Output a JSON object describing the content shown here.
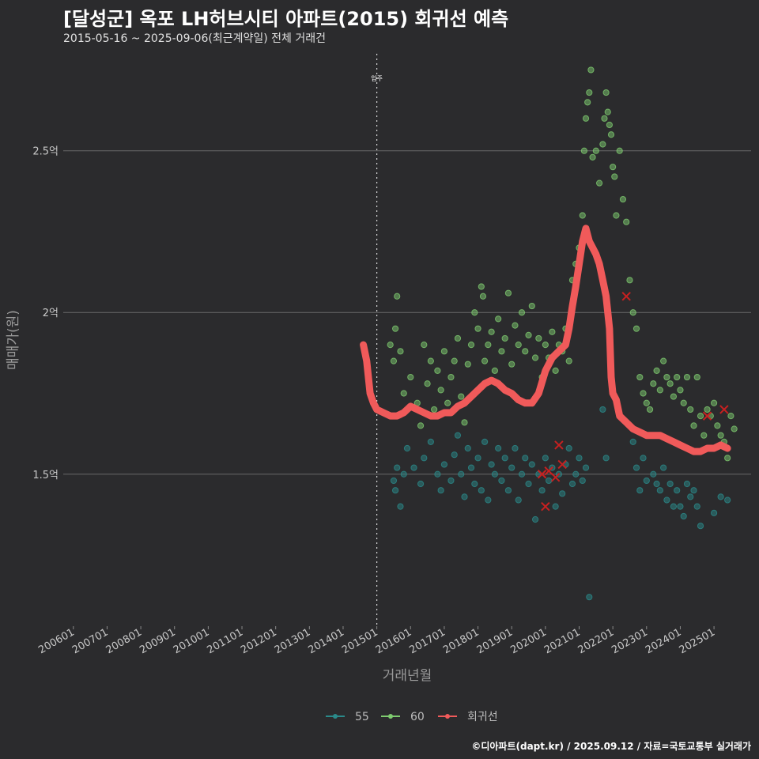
{
  "header": {
    "title": "[달성군] 옥포 LH허브시티 아파트(2015) 회귀선 예측",
    "subtitle": "2015-05-16 ~ 2025-09-06(최근계약일) 전체 거래건"
  },
  "footer": {
    "credit": "©디아파트(dapt.kr) / 2025.09.12 / 자료=국토교통부 실거래가"
  },
  "chart_data": {
    "type": "scatter",
    "title": "[달성군] 옥포 LH허브시티 아파트(2015) 회귀선 예측",
    "xlabel": "거래년월",
    "ylabel": "매매가(원)",
    "xlim": [
      2005.7,
      2026.1
    ],
    "ylim": [
      1.03,
      2.8
    ],
    "x_ticks": [
      2006,
      2007,
      2008,
      2009,
      2010,
      2011,
      2012,
      2013,
      2014,
      2015,
      2016,
      2017,
      2018,
      2019,
      2020,
      2021,
      2022,
      2023,
      2024,
      2025
    ],
    "x_tick_labels": [
      "200601",
      "200701",
      "200801",
      "200901",
      "201001",
      "201101",
      "201201",
      "201301",
      "201401",
      "201501",
      "201601",
      "201701",
      "201801",
      "201901",
      "202001",
      "202101",
      "202201",
      "202301",
      "202401",
      "202501"
    ],
    "y_ticks": [
      1.5,
      2.0,
      2.5
    ],
    "y_tick_labels": [
      "1.5억",
      "2억",
      "2.5억"
    ],
    "annotation": {
      "x": 2015.0,
      "label": "입주"
    },
    "legend": {
      "position": "bottom",
      "items": [
        {
          "label": "55",
          "color": "#2a8a8a"
        },
        {
          "label": "60",
          "color": "#7ecb6f"
        },
        {
          "label": "회귀선",
          "color": "#f05a5a"
        }
      ]
    },
    "series": [
      {
        "name": "55",
        "color": "#2a8a8a",
        "points": [
          [
            2015.5,
            1.48
          ],
          [
            2015.55,
            1.45
          ],
          [
            2015.6,
            1.52
          ],
          [
            2015.7,
            1.4
          ],
          [
            2015.8,
            1.5
          ],
          [
            2015.9,
            1.58
          ],
          [
            2016.1,
            1.52
          ],
          [
            2016.3,
            1.47
          ],
          [
            2016.4,
            1.55
          ],
          [
            2016.6,
            1.6
          ],
          [
            2016.8,
            1.5
          ],
          [
            2016.9,
            1.45
          ],
          [
            2017.0,
            1.53
          ],
          [
            2017.2,
            1.48
          ],
          [
            2017.3,
            1.56
          ],
          [
            2017.4,
            1.62
          ],
          [
            2017.5,
            1.5
          ],
          [
            2017.6,
            1.43
          ],
          [
            2017.7,
            1.58
          ],
          [
            2017.8,
            1.52
          ],
          [
            2017.9,
            1.47
          ],
          [
            2018.0,
            1.55
          ],
          [
            2018.1,
            1.45
          ],
          [
            2018.2,
            1.6
          ],
          [
            2018.3,
            1.42
          ],
          [
            2018.4,
            1.53
          ],
          [
            2018.5,
            1.5
          ],
          [
            2018.6,
            1.58
          ],
          [
            2018.7,
            1.48
          ],
          [
            2018.8,
            1.55
          ],
          [
            2018.9,
            1.45
          ],
          [
            2019.0,
            1.52
          ],
          [
            2019.1,
            1.58
          ],
          [
            2019.2,
            1.42
          ],
          [
            2019.3,
            1.5
          ],
          [
            2019.4,
            1.55
          ],
          [
            2019.5,
            1.47
          ],
          [
            2019.6,
            1.53
          ],
          [
            2019.7,
            1.36
          ],
          [
            2019.8,
            1.5
          ],
          [
            2019.9,
            1.45
          ],
          [
            2020.0,
            1.55
          ],
          [
            2020.1,
            1.48
          ],
          [
            2020.2,
            1.52
          ],
          [
            2020.3,
            1.4
          ],
          [
            2020.4,
            1.5
          ],
          [
            2020.5,
            1.44
          ],
          [
            2020.6,
            1.53
          ],
          [
            2020.7,
            1.58
          ],
          [
            2020.8,
            1.47
          ],
          [
            2020.9,
            1.5
          ],
          [
            2021.0,
            1.55
          ],
          [
            2021.1,
            1.48
          ],
          [
            2021.2,
            1.52
          ],
          [
            2021.3,
            1.12
          ],
          [
            2021.7,
            1.7
          ],
          [
            2021.8,
            1.55
          ],
          [
            2022.6,
            1.6
          ],
          [
            2022.7,
            1.52
          ],
          [
            2022.8,
            1.45
          ],
          [
            2022.9,
            1.55
          ],
          [
            2023.0,
            1.48
          ],
          [
            2023.2,
            1.5
          ],
          [
            2023.3,
            1.47
          ],
          [
            2023.4,
            1.45
          ],
          [
            2023.5,
            1.52
          ],
          [
            2023.6,
            1.42
          ],
          [
            2023.7,
            1.47
          ],
          [
            2023.8,
            1.4
          ],
          [
            2023.9,
            1.45
          ],
          [
            2024.0,
            1.4
          ],
          [
            2024.1,
            1.37
          ],
          [
            2024.2,
            1.47
          ],
          [
            2024.3,
            1.43
          ],
          [
            2024.4,
            1.45
          ],
          [
            2024.5,
            1.4
          ],
          [
            2024.6,
            1.34
          ],
          [
            2025.0,
            1.38
          ],
          [
            2025.2,
            1.43
          ],
          [
            2025.4,
            1.42
          ]
        ]
      },
      {
        "name": "60",
        "color": "#7ecb6f",
        "points": [
          [
            2015.4,
            1.9
          ],
          [
            2015.5,
            1.85
          ],
          [
            2015.55,
            1.95
          ],
          [
            2015.6,
            2.05
          ],
          [
            2015.7,
            1.88
          ],
          [
            2015.8,
            1.75
          ],
          [
            2016.0,
            1.8
          ],
          [
            2016.2,
            1.72
          ],
          [
            2016.3,
            1.65
          ],
          [
            2016.4,
            1.9
          ],
          [
            2016.5,
            1.78
          ],
          [
            2016.6,
            1.85
          ],
          [
            2016.7,
            1.7
          ],
          [
            2016.8,
            1.82
          ],
          [
            2016.9,
            1.76
          ],
          [
            2017.0,
            1.88
          ],
          [
            2017.1,
            1.72
          ],
          [
            2017.2,
            1.8
          ],
          [
            2017.3,
            1.85
          ],
          [
            2017.4,
            1.92
          ],
          [
            2017.5,
            1.74
          ],
          [
            2017.6,
            1.66
          ],
          [
            2017.7,
            1.84
          ],
          [
            2017.8,
            1.9
          ],
          [
            2017.9,
            2.0
          ],
          [
            2018.0,
            1.95
          ],
          [
            2018.1,
            2.08
          ],
          [
            2018.15,
            2.05
          ],
          [
            2018.2,
            1.85
          ],
          [
            2018.3,
            1.9
          ],
          [
            2018.4,
            1.94
          ],
          [
            2018.5,
            1.82
          ],
          [
            2018.6,
            1.98
          ],
          [
            2018.7,
            1.88
          ],
          [
            2018.8,
            1.92
          ],
          [
            2018.9,
            2.06
          ],
          [
            2019.0,
            1.84
          ],
          [
            2019.1,
            1.96
          ],
          [
            2019.2,
            1.9
          ],
          [
            2019.3,
            2.0
          ],
          [
            2019.4,
            1.88
          ],
          [
            2019.5,
            1.93
          ],
          [
            2019.6,
            2.02
          ],
          [
            2019.7,
            1.86
          ],
          [
            2019.8,
            1.92
          ],
          [
            2019.9,
            1.8
          ],
          [
            2020.0,
            1.9
          ],
          [
            2020.1,
            1.86
          ],
          [
            2020.2,
            1.94
          ],
          [
            2020.3,
            1.82
          ],
          [
            2020.4,
            1.9
          ],
          [
            2020.5,
            1.88
          ],
          [
            2020.6,
            1.95
          ],
          [
            2020.7,
            1.85
          ],
          [
            2020.8,
            2.1
          ],
          [
            2020.9,
            2.15
          ],
          [
            2021.0,
            2.2
          ],
          [
            2021.1,
            2.3
          ],
          [
            2021.15,
            2.5
          ],
          [
            2021.2,
            2.6
          ],
          [
            2021.25,
            2.65
          ],
          [
            2021.3,
            2.68
          ],
          [
            2021.35,
            2.75
          ],
          [
            2021.4,
            2.48
          ],
          [
            2021.5,
            2.5
          ],
          [
            2021.6,
            2.4
          ],
          [
            2021.7,
            2.52
          ],
          [
            2021.75,
            2.6
          ],
          [
            2021.8,
            2.68
          ],
          [
            2021.85,
            2.62
          ],
          [
            2021.9,
            2.58
          ],
          [
            2021.95,
            2.55
          ],
          [
            2022.0,
            2.45
          ],
          [
            2022.05,
            2.42
          ],
          [
            2022.1,
            2.3
          ],
          [
            2022.2,
            2.5
          ],
          [
            2022.3,
            2.35
          ],
          [
            2022.4,
            2.28
          ],
          [
            2022.5,
            2.1
          ],
          [
            2022.6,
            2.0
          ],
          [
            2022.7,
            1.95
          ],
          [
            2022.8,
            1.8
          ],
          [
            2022.9,
            1.75
          ],
          [
            2023.0,
            1.72
          ],
          [
            2023.1,
            1.7
          ],
          [
            2023.2,
            1.78
          ],
          [
            2023.3,
            1.82
          ],
          [
            2023.4,
            1.76
          ],
          [
            2023.5,
            1.85
          ],
          [
            2023.6,
            1.8
          ],
          [
            2023.7,
            1.78
          ],
          [
            2023.8,
            1.74
          ],
          [
            2023.9,
            1.8
          ],
          [
            2024.0,
            1.76
          ],
          [
            2024.1,
            1.72
          ],
          [
            2024.2,
            1.8
          ],
          [
            2024.3,
            1.7
          ],
          [
            2024.4,
            1.65
          ],
          [
            2024.5,
            1.8
          ],
          [
            2024.6,
            1.68
          ],
          [
            2024.7,
            1.62
          ],
          [
            2024.8,
            1.7
          ],
          [
            2024.9,
            1.68
          ],
          [
            2025.0,
            1.72
          ],
          [
            2025.1,
            1.65
          ],
          [
            2025.2,
            1.62
          ],
          [
            2025.3,
            1.6
          ],
          [
            2025.4,
            1.55
          ],
          [
            2025.5,
            1.68
          ],
          [
            2025.6,
            1.64
          ]
        ]
      }
    ],
    "regression_line": {
      "name": "회귀선",
      "color": "#f05a5a",
      "points": [
        [
          2014.6,
          1.9
        ],
        [
          2014.7,
          1.85
        ],
        [
          2014.8,
          1.75
        ],
        [
          2014.9,
          1.72
        ],
        [
          2015.0,
          1.7
        ],
        [
          2015.2,
          1.69
        ],
        [
          2015.4,
          1.68
        ],
        [
          2015.6,
          1.68
        ],
        [
          2015.8,
          1.69
        ],
        [
          2016.0,
          1.71
        ],
        [
          2016.2,
          1.7
        ],
        [
          2016.4,
          1.69
        ],
        [
          2016.6,
          1.68
        ],
        [
          2016.8,
          1.68
        ],
        [
          2017.0,
          1.69
        ],
        [
          2017.2,
          1.69
        ],
        [
          2017.4,
          1.71
        ],
        [
          2017.6,
          1.72
        ],
        [
          2017.8,
          1.74
        ],
        [
          2018.0,
          1.76
        ],
        [
          2018.2,
          1.78
        ],
        [
          2018.4,
          1.79
        ],
        [
          2018.6,
          1.78
        ],
        [
          2018.8,
          1.76
        ],
        [
          2019.0,
          1.75
        ],
        [
          2019.2,
          1.73
        ],
        [
          2019.4,
          1.72
        ],
        [
          2019.6,
          1.72
        ],
        [
          2019.8,
          1.75
        ],
        [
          2020.0,
          1.82
        ],
        [
          2020.2,
          1.86
        ],
        [
          2020.4,
          1.88
        ],
        [
          2020.6,
          1.9
        ],
        [
          2020.7,
          1.95
        ],
        [
          2020.8,
          2.02
        ],
        [
          2020.9,
          2.08
        ],
        [
          2021.0,
          2.15
        ],
        [
          2021.1,
          2.22
        ],
        [
          2021.2,
          2.26
        ],
        [
          2021.3,
          2.22
        ],
        [
          2021.4,
          2.2
        ],
        [
          2021.5,
          2.18
        ],
        [
          2021.6,
          2.15
        ],
        [
          2021.7,
          2.1
        ],
        [
          2021.8,
          2.05
        ],
        [
          2021.9,
          1.95
        ],
        [
          2021.95,
          1.8
        ],
        [
          2022.0,
          1.75
        ],
        [
          2022.1,
          1.73
        ],
        [
          2022.2,
          1.68
        ],
        [
          2022.4,
          1.66
        ],
        [
          2022.6,
          1.64
        ],
        [
          2022.8,
          1.63
        ],
        [
          2023.0,
          1.62
        ],
        [
          2023.2,
          1.62
        ],
        [
          2023.4,
          1.62
        ],
        [
          2023.6,
          1.61
        ],
        [
          2023.8,
          1.6
        ],
        [
          2024.0,
          1.59
        ],
        [
          2024.2,
          1.58
        ],
        [
          2024.4,
          1.57
        ],
        [
          2024.6,
          1.57
        ],
        [
          2024.8,
          1.58
        ],
        [
          2025.0,
          1.58
        ],
        [
          2025.2,
          1.59
        ],
        [
          2025.4,
          1.58
        ]
      ]
    },
    "x_markers": [
      [
        2019.9,
        1.5
      ],
      [
        2020.0,
        1.4
      ],
      [
        2020.1,
        1.51
      ],
      [
        2020.3,
        1.49
      ],
      [
        2020.4,
        1.59
      ],
      [
        2020.5,
        1.53
      ],
      [
        2022.4,
        2.05
      ],
      [
        2024.8,
        1.68
      ],
      [
        2025.3,
        1.7
      ]
    ]
  }
}
